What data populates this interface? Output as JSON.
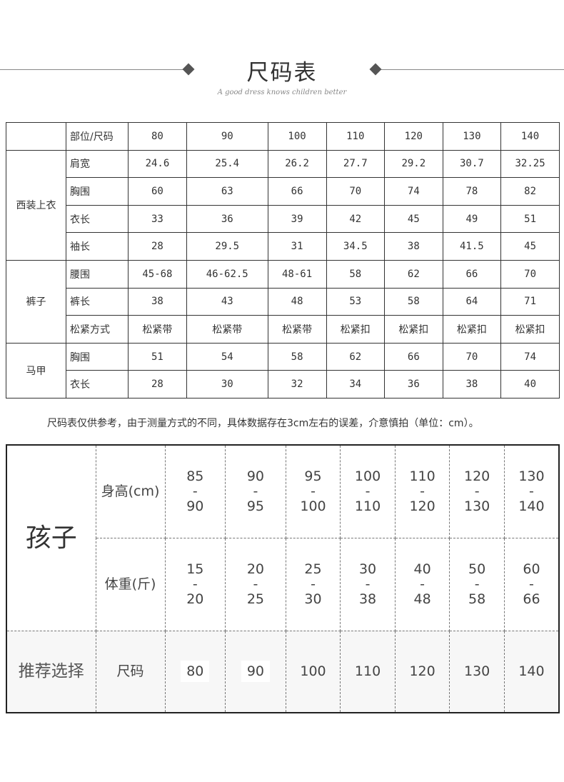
{
  "header": {
    "title": "尺码表",
    "subtitle": "A good dress knows children better"
  },
  "size_table": {
    "corner": "部位/尺码",
    "sizes": [
      "80",
      "90",
      "100",
      "110",
      "120",
      "130",
      "140"
    ],
    "groups": [
      {
        "name": "西装上衣",
        "rows": [
          {
            "label": "肩宽",
            "values": [
              "24.6",
              "25.4",
              "26.2",
              "27.7",
              "29.2",
              "30.7",
              "32.25"
            ]
          },
          {
            "label": "胸围",
            "values": [
              "60",
              "63",
              "66",
              "70",
              "74",
              "78",
              "82"
            ]
          },
          {
            "label": "衣长",
            "values": [
              "33",
              "36",
              "39",
              "42",
              "45",
              "49",
              "51"
            ]
          },
          {
            "label": "袖长",
            "values": [
              "28",
              "29.5",
              "31",
              "34.5",
              "38",
              "41.5",
              "45"
            ]
          }
        ]
      },
      {
        "name": "裤子",
        "rows": [
          {
            "label": "腰围",
            "values": [
              "45-68",
              "46-62.5",
              "48-61",
              "58",
              "62",
              "66",
              "70"
            ]
          },
          {
            "label": "裤长",
            "values": [
              "38",
              "43",
              "48",
              "53",
              "58",
              "64",
              "71"
            ]
          },
          {
            "label": "松紧方式",
            "values": [
              "松紧带",
              "松紧带",
              "松紧带",
              "松紧扣",
              "松紧扣",
              "松紧扣",
              "松紧扣"
            ]
          }
        ]
      },
      {
        "name": "马甲",
        "rows": [
          {
            "label": "胸围",
            "values": [
              "51",
              "54",
              "58",
              "62",
              "66",
              "70",
              "74"
            ]
          },
          {
            "label": "衣长",
            "values": [
              "28",
              "30",
              "32",
              "34",
              "36",
              "38",
              "40"
            ]
          }
        ]
      }
    ]
  },
  "note": "尺码表仅供参考，由于测量方式的不同，具体数据存在3cm左右的误差，介意慎拍（单位：cm）。",
  "guide": {
    "group": "孩子",
    "height_label": "身高(cm)",
    "heights": [
      [
        "85",
        "90"
      ],
      [
        "90",
        "95"
      ],
      [
        "95",
        "100"
      ],
      [
        "100",
        "110"
      ],
      [
        "110",
        "120"
      ],
      [
        "120",
        "130"
      ],
      [
        "130",
        "140"
      ]
    ],
    "weight_label": "体重(斤)",
    "weights": [
      [
        "15",
        "20"
      ],
      [
        "20",
        "25"
      ],
      [
        "25",
        "30"
      ],
      [
        "30",
        "38"
      ],
      [
        "40",
        "48"
      ],
      [
        "50",
        "58"
      ],
      [
        "60",
        "66"
      ]
    ],
    "recommend_label": "推荐选择",
    "size_label": "尺码",
    "sizes": [
      "80",
      "90",
      "100",
      "110",
      "120",
      "130",
      "140"
    ]
  }
}
